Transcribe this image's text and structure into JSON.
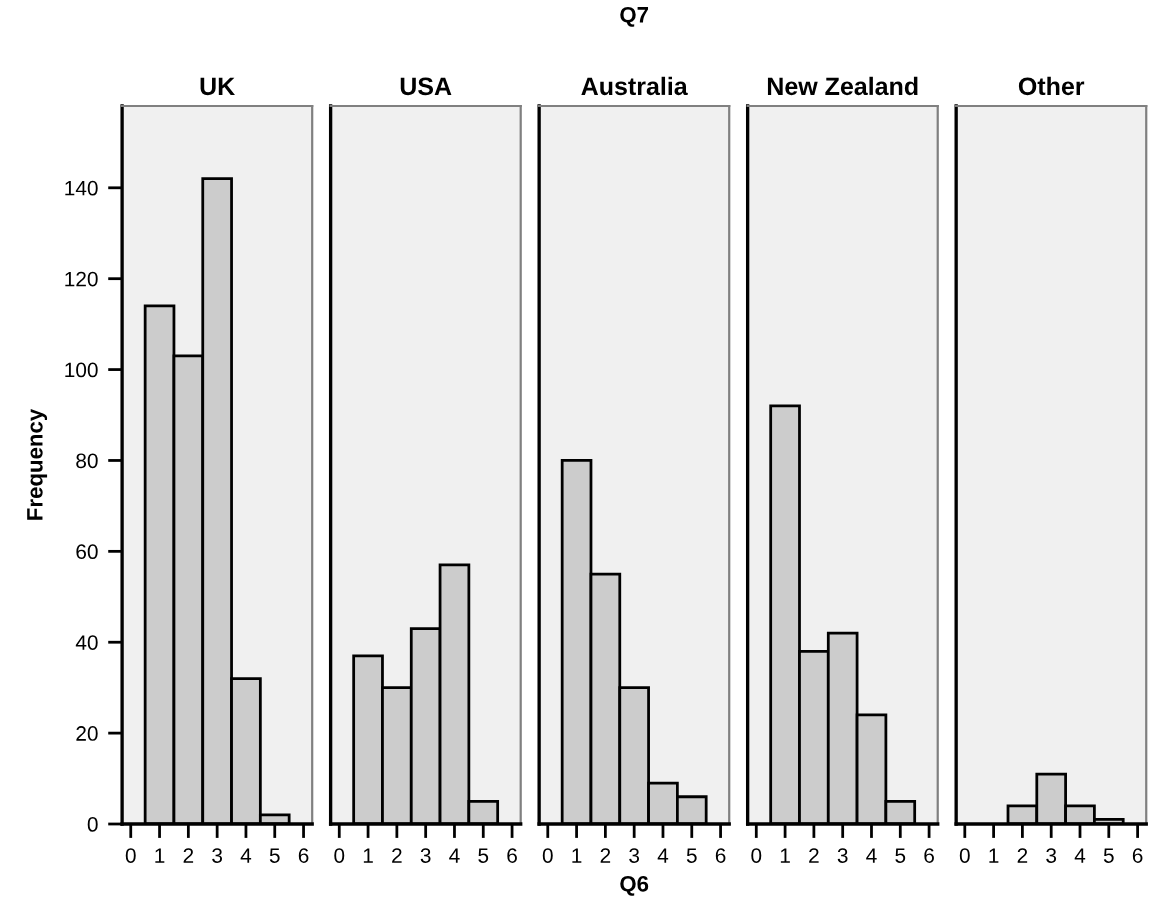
{
  "chart_data": [
    {
      "type": "histogram",
      "title": "UK",
      "ylabel": "Frequency",
      "bins": [
        0.5,
        1.5,
        2.5,
        3.5,
        4.5,
        5.5
      ],
      "values": [
        114,
        103,
        142,
        32,
        2
      ],
      "color": "#cccccc",
      "xlim": [
        -0.3,
        6.3
      ],
      "xticks": [
        0,
        1,
        2,
        3,
        4,
        5,
        6
      ],
      "ylim": [
        0,
        158
      ],
      "yticks": [
        0,
        20,
        40,
        60,
        80,
        100,
        120,
        140
      ],
      "grid": false
    },
    {
      "type": "histogram",
      "title": "USA",
      "bins": [
        0.5,
        1.5,
        2.5,
        3.5,
        4.5,
        5.5
      ],
      "values": [
        37,
        30,
        43,
        57,
        5
      ],
      "color": "#cccccc",
      "xlim": [
        -0.3,
        6.3
      ],
      "xticks": [
        0,
        1,
        2,
        3,
        4,
        5,
        6
      ],
      "ylim": [
        0,
        158
      ],
      "tick_labels": "x",
      "grid": false
    },
    {
      "type": "histogram",
      "title": "Australia",
      "xlabel": "Q6",
      "annotations": [
        "Q7"
      ],
      "bins": [
        0.5,
        1.5,
        2.5,
        3.5,
        4.5,
        5.5
      ],
      "values": [
        80,
        55,
        30,
        9,
        6
      ],
      "color": "#cccccc",
      "xlim": [
        -0.3,
        6.3
      ],
      "xticks": [
        0,
        1,
        2,
        3,
        4,
        5,
        6
      ],
      "ylim": [
        0,
        158
      ],
      "tick_labels": "x",
      "grid": false
    },
    {
      "type": "histogram",
      "title": "New Zealand",
      "bins": [
        0.5,
        1.5,
        2.5,
        3.5,
        4.5,
        5.5
      ],
      "values": [
        92,
        38,
        42,
        24,
        5
      ],
      "color": "#cccccc",
      "xlim": [
        -0.3,
        6.3
      ],
      "xticks": [
        0,
        1,
        2,
        3,
        4,
        5,
        6
      ],
      "ylim": [
        0,
        158
      ],
      "tick_labels": "x",
      "grid": false
    },
    {
      "type": "histogram",
      "title": "Other",
      "bins": [
        1.5,
        2.5,
        3.5,
        4.5,
        5.5
      ],
      "values": [
        4,
        11,
        4,
        1
      ],
      "color": "#cccccc",
      "xlim": [
        -0.3,
        6.3
      ],
      "xticks": [
        0,
        1,
        2,
        3,
        4,
        5,
        6
      ],
      "ylim": [
        0,
        158
      ],
      "tick_labels": "x",
      "grid": false
    }
  ]
}
